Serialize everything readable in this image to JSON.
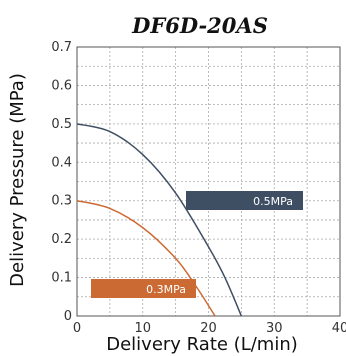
{
  "chart_data": {
    "type": "line",
    "title": "DF6D-20AS",
    "xlabel": "Delivery Rate (L/min)",
    "ylabel": "Delivery Pressure (MPa)",
    "xlim": [
      0,
      40
    ],
    "ylim": [
      0,
      0.7
    ],
    "xticks": [
      "0",
      "10",
      "20",
      "30",
      "40"
    ],
    "yticks": [
      "0",
      "0.1",
      "0.2",
      "0.3",
      "0.4",
      "0.5",
      "0.6",
      "0.7"
    ],
    "grid": true,
    "series": [
      {
        "name": "0.5MPa",
        "color": "#3f4f63",
        "x": [
          0,
          5,
          10,
          15,
          20,
          22.5,
          25
        ],
        "y": [
          0.5,
          0.48,
          0.42,
          0.32,
          0.18,
          0.1,
          0
        ]
      },
      {
        "name": "0.3MPa",
        "color": "#cc6a33",
        "x": [
          0,
          5,
          10,
          15,
          18,
          21
        ],
        "y": [
          0.3,
          0.28,
          0.23,
          0.15,
          0.08,
          0
        ]
      }
    ]
  }
}
